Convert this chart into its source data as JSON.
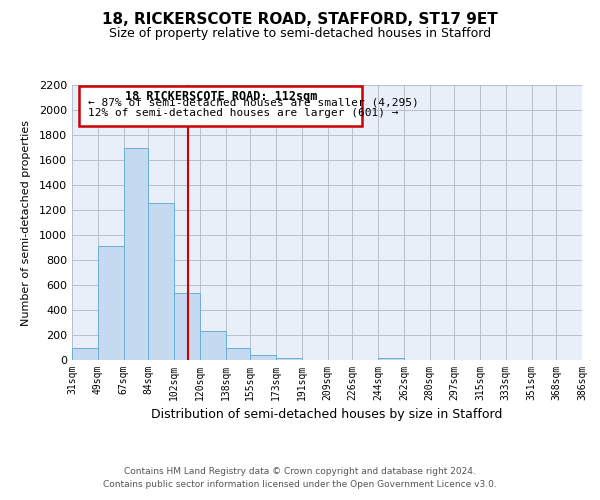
{
  "title": "18, RICKERSCOTE ROAD, STAFFORD, ST17 9ET",
  "subtitle": "Size of property relative to semi-detached houses in Stafford",
  "xlabel": "Distribution of semi-detached houses by size in Stafford",
  "ylabel": "Number of semi-detached properties",
  "bar_color": "#c5d9f0",
  "bar_edge_color": "#6aaed6",
  "background_color": "#ffffff",
  "plot_bg_color": "#e8eff8",
  "grid_color": "#b0b8c8",
  "vline_x": 112,
  "vline_color": "#cc0000",
  "annotation_title": "18 RICKERSCOTE ROAD: 112sqm",
  "annotation_line1": "← 87% of semi-detached houses are smaller (4,295)",
  "annotation_line2": "12% of semi-detached houses are larger (601) →",
  "annotation_box_color": "#cc0000",
  "bin_edges": [
    31,
    49,
    67,
    84,
    102,
    120,
    138,
    155,
    173,
    191,
    209,
    226,
    244,
    262,
    280,
    297,
    315,
    333,
    351,
    368,
    386
  ],
  "bin_heights": [
    95,
    910,
    1700,
    1260,
    540,
    235,
    100,
    40,
    20,
    0,
    0,
    0,
    20,
    0,
    0,
    0,
    0,
    0,
    0,
    0
  ],
  "tick_labels": [
    "31sqm",
    "49sqm",
    "67sqm",
    "84sqm",
    "102sqm",
    "120sqm",
    "138sqm",
    "155sqm",
    "173sqm",
    "191sqm",
    "209sqm",
    "226sqm",
    "244sqm",
    "262sqm",
    "280sqm",
    "297sqm",
    "315sqm",
    "333sqm",
    "351sqm",
    "368sqm",
    "386sqm"
  ],
  "ylim": [
    0,
    2200
  ],
  "yticks": [
    0,
    200,
    400,
    600,
    800,
    1000,
    1200,
    1400,
    1600,
    1800,
    2000,
    2200
  ],
  "footer1": "Contains HM Land Registry data © Crown copyright and database right 2024.",
  "footer2": "Contains public sector information licensed under the Open Government Licence v3.0."
}
